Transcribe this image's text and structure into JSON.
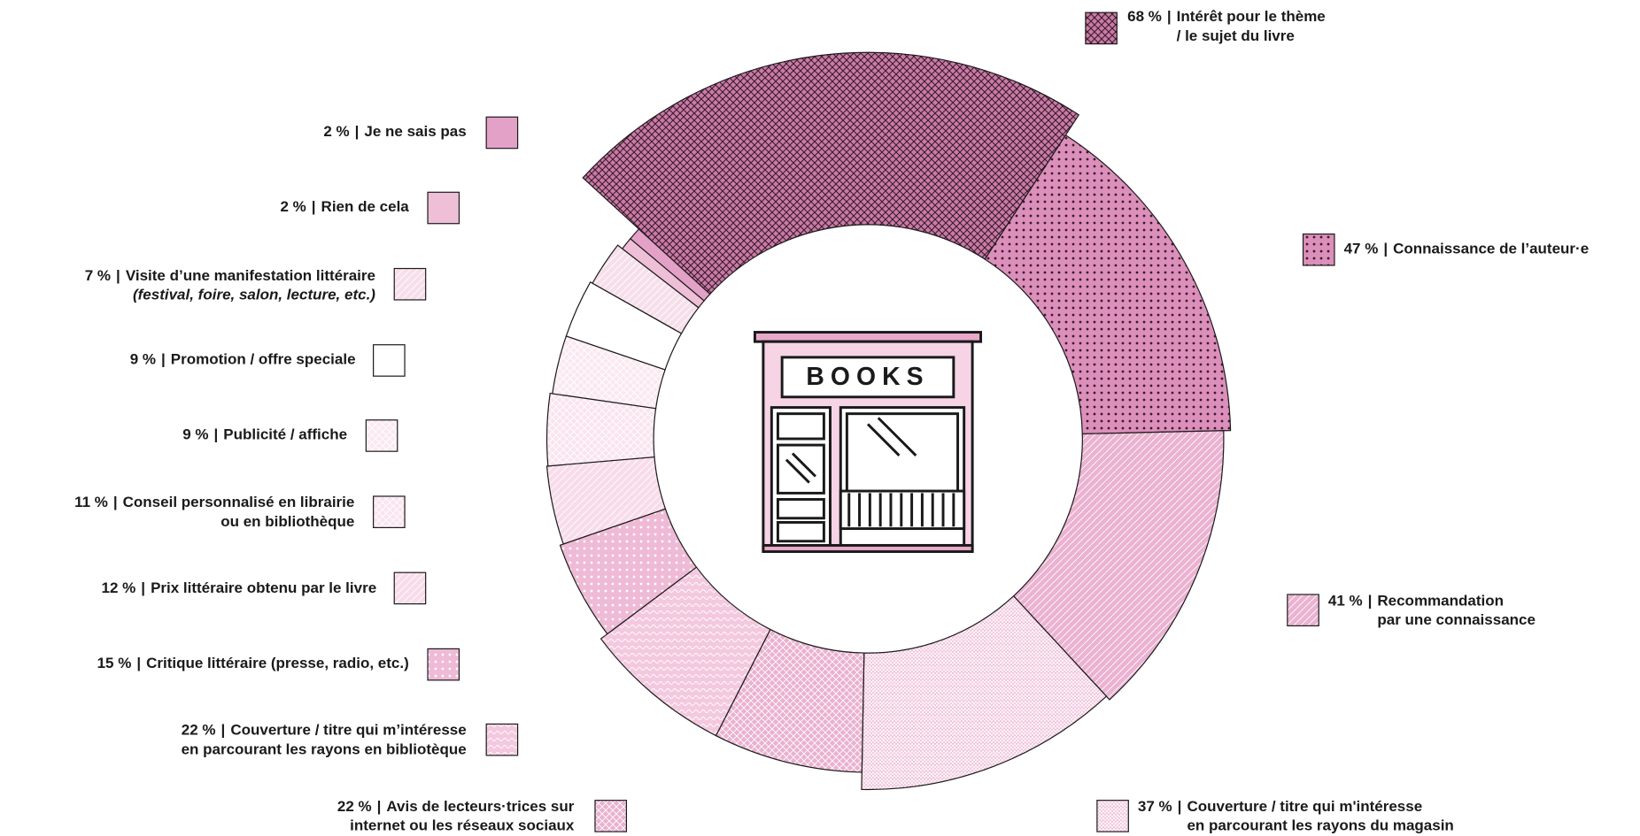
{
  "chart_data": {
    "type": "radial-pie",
    "separator": "|",
    "icon_text": "BOOKS",
    "categories": [
      [
        "Intérêt pour le thème",
        "/ le sujet du livre"
      ],
      [
        "Connaissance de l’auteur·e"
      ],
      [
        "Recommandation",
        "par une connaissance"
      ],
      [
        "Couverture / titre qui m'intéresse",
        "en parcourant les rayons du magasin"
      ],
      [
        "Avis de lecteurs·trices sur",
        "internet ou les réseaux sociaux"
      ],
      [
        "Couverture / titre qui m’intéresse",
        "en parcourant les rayons en bibliotèque"
      ],
      [
        "Critique littéraire (presse, radio, etc.)"
      ],
      [
        "Prix littéraire obtenu par le livre"
      ],
      [
        "Conseil personnalisé en librairie",
        "ou en bibliothèque"
      ],
      [
        "Publicité / affiche"
      ],
      [
        "Promotion / offre speciale"
      ],
      [
        "Visite d’une manifestation littéraire",
        "(festival, foire, salon, lecture, etc.)"
      ],
      [
        "Rien de cela"
      ],
      [
        "Je ne sais pas"
      ]
    ],
    "values": [
      68,
      47,
      41,
      37,
      22,
      22,
      15,
      12,
      11,
      9,
      9,
      7,
      2,
      2
    ],
    "value_labels": [
      "68 %",
      "47 %",
      "41 %",
      "37 %",
      "22 %",
      "22 %",
      "15 %",
      "12 %",
      "11 %",
      "9 %",
      "9 %",
      "7 %",
      "2 %",
      "2 %"
    ],
    "colors": [
      "#c97ba6",
      "#dc8fbb",
      "#ebb2d1",
      "#f0bfda",
      "#eab1d0",
      "#f4c9df",
      "#efbad6",
      "#f8dcea",
      "#fae4ef",
      "#fbe9f2",
      "#ffffff",
      "#f6dfeb",
      "#eebfd7",
      "#e3a1c7"
    ]
  }
}
